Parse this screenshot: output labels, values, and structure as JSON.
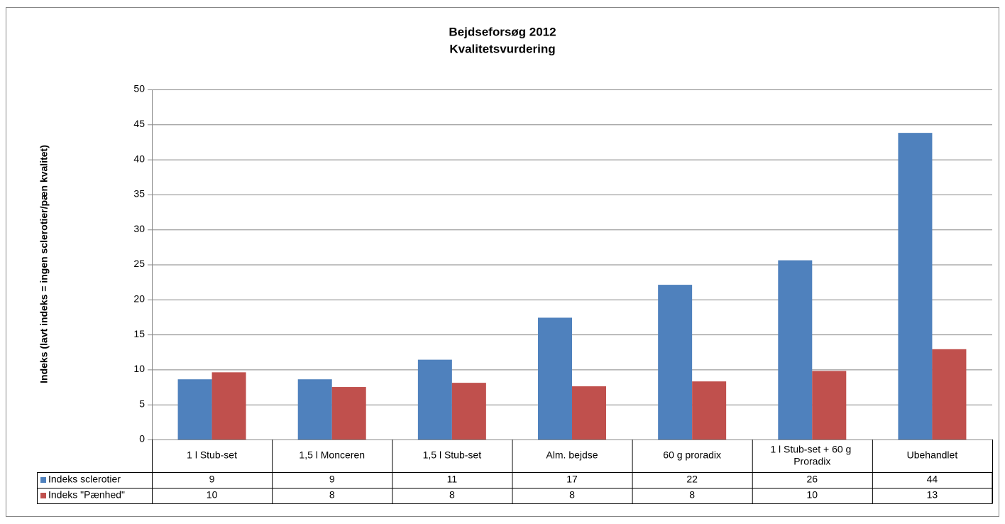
{
  "chart_data": {
    "type": "bar",
    "title": "Bejdseforsøg 2012",
    "subtitle": "Kvalitetsvurdering",
    "y_label": "Indeks (lavt indeks = ingen sclerotier/pæn kvalitet)",
    "categories": [
      "1 l Stub-set",
      "1,5 l Monceren",
      "1,5 l Stub-set",
      "Alm. bejdse",
      "60 g proradix",
      "1 l Stub-set + 60 g Proradix",
      "Ubehandlet"
    ],
    "series": [
      {
        "name": "Indeks sclerotier",
        "color": "#4f81bd",
        "values": [
          8.6,
          8.6,
          11.4,
          17.4,
          22.1,
          25.6,
          43.8
        ],
        "value_labels": [
          "9",
          "9",
          "11",
          "17",
          "22",
          "26",
          "44"
        ]
      },
      {
        "name": "Indeks \"Pænhed\"",
        "color": "#c0504d",
        "values": [
          9.6,
          7.5,
          8.1,
          7.6,
          8.3,
          9.8,
          12.9
        ],
        "value_labels": [
          "10",
          "8",
          "8",
          "8",
          "8",
          "10",
          "13"
        ]
      }
    ],
    "ylim": [
      0,
      50
    ],
    "yticks": [
      0,
      5,
      10,
      15,
      20,
      25,
      30,
      35,
      40,
      45,
      50
    ],
    "grid": true,
    "data_table": true
  }
}
